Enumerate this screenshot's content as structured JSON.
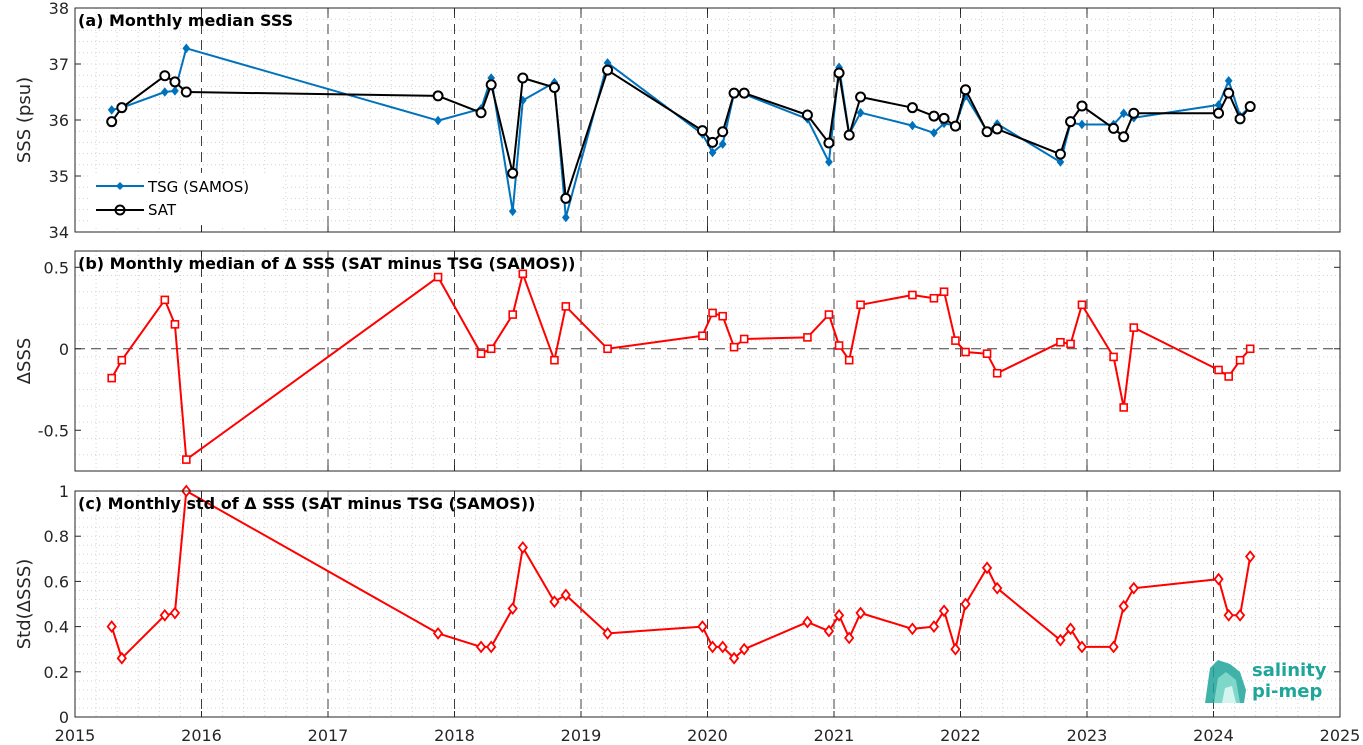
{
  "figure": {
    "x_ticks": [
      "2015",
      "2016",
      "2017",
      "2018",
      "2019",
      "2020",
      "2021",
      "2022",
      "2023",
      "2024",
      "2025"
    ],
    "logo": {
      "line1": "salinity",
      "line2": "pi-mep"
    }
  },
  "chart_data": [
    {
      "type": "line",
      "title": "(a) Monthly median SSS",
      "xlabel": "",
      "ylabel": "SSS (psu)",
      "xlim": [
        2015,
        2025
      ],
      "ylim": [
        34,
        38
      ],
      "yticks": [
        34,
        35,
        36,
        37,
        38
      ],
      "ytick_labels": [
        "34",
        "35",
        "36",
        "37",
        "38"
      ],
      "legend": "bottom-left",
      "grid": true,
      "series": [
        {
          "name": "TSG (SAMOS)",
          "color": "#0072BD",
          "marker": "diamond",
          "x": [
            2015.29,
            2015.37,
            2015.71,
            2015.79,
            2015.88,
            2017.87,
            2018.21,
            2018.29,
            2018.46,
            2018.54,
            2018.79,
            2018.88,
            2019.21,
            2019.96,
            2020.04,
            2020.12,
            2020.21,
            2020.29,
            2020.79,
            2020.96,
            2021.04,
            2021.12,
            2021.21,
            2021.62,
            2021.79,
            2021.87,
            2021.96,
            2022.04,
            2022.21,
            2022.29,
            2022.79,
            2022.87,
            2022.96,
            2023.21,
            2023.29,
            2023.37,
            2024.04,
            2024.12,
            2024.21,
            2024.29
          ],
          "y": [
            36.18,
            36.22,
            36.5,
            36.52,
            37.28,
            35.99,
            36.2,
            36.75,
            34.37,
            36.35,
            36.67,
            34.26,
            37.02,
            35.75,
            35.42,
            35.57,
            36.48,
            36.46,
            36.02,
            35.25,
            36.94,
            35.75,
            36.13,
            35.9,
            35.77,
            35.94,
            35.9,
            36.43,
            35.8,
            35.93,
            35.25,
            35.95,
            35.92,
            35.92,
            36.12,
            36.04,
            36.27,
            36.7,
            36.07,
            36.24
          ]
        },
        {
          "name": "SAT",
          "color": "#000000",
          "marker": "circle",
          "x": [
            2015.29,
            2015.37,
            2015.71,
            2015.79,
            2015.88,
            2017.87,
            2018.21,
            2018.29,
            2018.46,
            2018.54,
            2018.79,
            2018.88,
            2019.21,
            2019.96,
            2020.04,
            2020.12,
            2020.21,
            2020.29,
            2020.79,
            2020.96,
            2021.04,
            2021.12,
            2021.21,
            2021.62,
            2021.79,
            2021.87,
            2021.96,
            2022.04,
            2022.21,
            2022.29,
            2022.79,
            2022.87,
            2022.96,
            2023.21,
            2023.29,
            2023.37,
            2024.04,
            2024.12,
            2024.21,
            2024.29
          ],
          "y": [
            35.97,
            36.22,
            36.79,
            36.68,
            36.5,
            36.43,
            36.13,
            36.63,
            35.05,
            36.75,
            36.58,
            34.6,
            36.89,
            35.81,
            35.6,
            35.79,
            36.48,
            36.48,
            36.09,
            35.59,
            36.84,
            35.73,
            36.41,
            36.22,
            36.07,
            36.03,
            35.89,
            36.54,
            35.79,
            35.84,
            35.39,
            35.97,
            36.25,
            35.85,
            35.7,
            36.12,
            36.12,
            36.48,
            36.02,
            36.24
          ]
        }
      ]
    },
    {
      "type": "line",
      "title": "(b) Monthly median of Δ SSS (SAT minus TSG (SAMOS))",
      "xlabel": "",
      "ylabel": "ΔSSS",
      "xlim": [
        2015,
        2025
      ],
      "ylim": [
        -0.75,
        0.6
      ],
      "yticks": [
        -0.5,
        0,
        0.5
      ],
      "ytick_labels": [
        "-0.5",
        "0",
        "0.5"
      ],
      "grid": true,
      "series": [
        {
          "color": "#FF0000",
          "marker": "square",
          "x": [
            2015.29,
            2015.37,
            2015.71,
            2015.79,
            2015.88,
            2017.87,
            2018.21,
            2018.29,
            2018.46,
            2018.54,
            2018.79,
            2018.88,
            2019.21,
            2019.96,
            2020.04,
            2020.12,
            2020.21,
            2020.29,
            2020.79,
            2020.96,
            2021.04,
            2021.12,
            2021.21,
            2021.62,
            2021.79,
            2021.87,
            2021.96,
            2022.04,
            2022.21,
            2022.29,
            2022.79,
            2022.87,
            2022.96,
            2023.21,
            2023.29,
            2023.37,
            2024.04,
            2024.12,
            2024.21,
            2024.29
          ],
          "y": [
            -0.18,
            -0.07,
            0.3,
            0.15,
            -0.68,
            0.44,
            -0.03,
            0.0,
            0.21,
            0.46,
            -0.07,
            0.26,
            0.0,
            0.08,
            0.22,
            0.2,
            0.01,
            0.06,
            0.07,
            0.21,
            0.02,
            -0.07,
            0.27,
            0.33,
            0.31,
            0.35,
            0.05,
            -0.02,
            -0.03,
            -0.15,
            0.04,
            0.03,
            0.27,
            -0.05,
            -0.36,
            0.13,
            -0.13,
            -0.17,
            -0.07,
            0.0
          ]
        }
      ]
    },
    {
      "type": "line",
      "title": "(c) Monthly std of Δ SSS (SAT minus TSG (SAMOS))",
      "xlabel": "",
      "ylabel": "Std(ΔSSS)",
      "xlim": [
        2015,
        2025
      ],
      "ylim": [
        0,
        1
      ],
      "yticks": [
        0,
        0.2,
        0.4,
        0.6,
        0.8,
        1
      ],
      "ytick_labels": [
        "0",
        "0.2",
        "0.4",
        "0.6",
        "0.8",
        "1"
      ],
      "grid": true,
      "series": [
        {
          "color": "#FF0000",
          "marker": "diamond",
          "x": [
            2015.29,
            2015.37,
            2015.71,
            2015.79,
            2015.88,
            2017.87,
            2018.21,
            2018.29,
            2018.46,
            2018.54,
            2018.79,
            2018.88,
            2019.21,
            2019.96,
            2020.04,
            2020.12,
            2020.21,
            2020.29,
            2020.79,
            2020.96,
            2021.04,
            2021.12,
            2021.21,
            2021.62,
            2021.79,
            2021.87,
            2021.96,
            2022.04,
            2022.21,
            2022.29,
            2022.79,
            2022.87,
            2022.96,
            2023.21,
            2023.29,
            2023.37,
            2024.04,
            2024.12,
            2024.21,
            2024.29
          ],
          "y": [
            0.4,
            0.26,
            0.45,
            0.46,
            1.0,
            0.37,
            0.31,
            0.31,
            0.48,
            0.75,
            0.51,
            0.54,
            0.37,
            0.4,
            0.31,
            0.31,
            0.26,
            0.3,
            0.42,
            0.38,
            0.45,
            0.35,
            0.46,
            0.39,
            0.4,
            0.47,
            0.3,
            0.5,
            0.66,
            0.57,
            0.34,
            0.39,
            0.31,
            0.31,
            0.49,
            0.57,
            0.61,
            0.45,
            0.45,
            0.71
          ]
        }
      ]
    }
  ]
}
